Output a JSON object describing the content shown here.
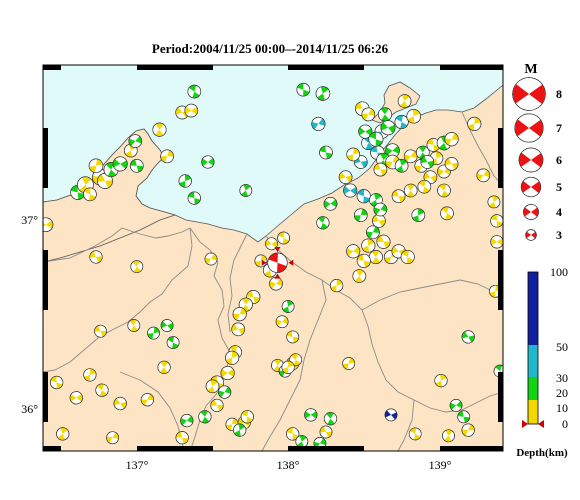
{
  "title": "Period:2004/11/25 00:00–-2014/11/25 06:26",
  "map": {
    "longitude_ticks": [
      "137°",
      "138°",
      "139°"
    ],
    "latitude_ticks": [
      "37°",
      "36°"
    ],
    "sea_color": "#e0fafa",
    "land_color": "#fde4c4",
    "border_color": "#8a8a8a"
  },
  "magnitude_legend": {
    "title": "M",
    "items": [
      {
        "value": "8"
      },
      {
        "value": "7"
      },
      {
        "value": "6"
      },
      {
        "value": "5"
      },
      {
        "value": "4"
      },
      {
        "value": "3"
      }
    ]
  },
  "depth_legend": {
    "title": "Depth(km)",
    "ticks": [
      "100",
      "50",
      "30",
      "20",
      "10",
      "0"
    ],
    "colors": [
      "#f5d800",
      "#12d412",
      "#20b8c8",
      "#1020a0"
    ]
  },
  "mechanisms": [
    {
      "lon": 136.37,
      "lat": 36.97,
      "mag": 3.7,
      "c": "#f5d800"
    },
    {
      "lon": 136.58,
      "lat": 37.14,
      "mag": 3.8,
      "c": "#12d412"
    },
    {
      "lon": 136.63,
      "lat": 37.18,
      "mag": 4.2,
      "c": "#f5d800"
    },
    {
      "lon": 136.73,
      "lat": 37.22,
      "mag": 4.2,
      "c": "#f5d800"
    },
    {
      "lon": 136.76,
      "lat": 37.2,
      "mag": 4.0,
      "c": "#f5d800"
    },
    {
      "lon": 136.8,
      "lat": 37.26,
      "mag": 3.8,
      "c": "#12d412"
    },
    {
      "lon": 136.7,
      "lat": 37.28,
      "mag": 3.7,
      "c": "#f5d800"
    },
    {
      "lon": 136.86,
      "lat": 37.29,
      "mag": 3.8,
      "c": "#12d412"
    },
    {
      "lon": 136.66,
      "lat": 37.13,
      "mag": 3.5,
      "c": "#f5d800"
    },
    {
      "lon": 136.93,
      "lat": 37.36,
      "mag": 3.5,
      "c": "#f5d800"
    },
    {
      "lon": 136.96,
      "lat": 37.41,
      "mag": 3.5,
      "c": "#12d412"
    },
    {
      "lon": 136.97,
      "lat": 37.28,
      "mag": 3.5,
      "c": "#12d412"
    },
    {
      "lon": 137.12,
      "lat": 37.47,
      "mag": 3.6,
      "c": "#f5d800"
    },
    {
      "lon": 137.17,
      "lat": 37.33,
      "mag": 3.5,
      "c": "#f5d800"
    },
    {
      "lon": 137.27,
      "lat": 37.56,
      "mag": 3.5,
      "c": "#f5d800"
    },
    {
      "lon": 137.35,
      "lat": 37.67,
      "mag": 3.5,
      "c": "#12d412"
    },
    {
      "lon": 137.29,
      "lat": 37.2,
      "mag": 3.4,
      "c": "#12d412"
    },
    {
      "lon": 137.44,
      "lat": 37.3,
      "mag": 3.4,
      "c": "#12d412"
    },
    {
      "lon": 137.35,
      "lat": 37.11,
      "mag": 3.4,
      "c": "#12d412"
    },
    {
      "lon": 137.69,
      "lat": 37.15,
      "mag": 3.3,
      "c": "#12d412"
    },
    {
      "lon": 137.46,
      "lat": 36.79,
      "mag": 3.3,
      "c": "#f5d800"
    },
    {
      "lon": 136.7,
      "lat": 36.8,
      "mag": 3.4,
      "c": "#f5d800"
    },
    {
      "lon": 136.97,
      "lat": 36.75,
      "mag": 3.3,
      "c": "#f5d800"
    },
    {
      "lon": 137.79,
      "lat": 36.78,
      "mag": 3.3,
      "c": "#f5d800"
    },
    {
      "lon": 137.86,
      "lat": 36.87,
      "mag": 3.3,
      "c": "#f5d800"
    },
    {
      "lon": 137.94,
      "lat": 36.9,
      "mag": 3.3,
      "c": "#f5d800"
    },
    {
      "lon": 137.85,
      "lat": 36.73,
      "mag": 3.6,
      "c": "#f5d800"
    },
    {
      "lon": 137.89,
      "lat": 36.66,
      "mag": 3.5,
      "c": "#f5d800"
    },
    {
      "lon": 137.74,
      "lat": 36.59,
      "mag": 3.6,
      "c": "#f5d800"
    },
    {
      "lon": 137.69,
      "lat": 36.55,
      "mag": 3.6,
      "c": "#f5d800"
    },
    {
      "lon": 137.65,
      "lat": 36.5,
      "mag": 3.6,
      "c": "#f5d800"
    },
    {
      "lon": 137.64,
      "lat": 36.42,
      "mag": 3.5,
      "c": "#f5d800"
    },
    {
      "lon": 137.62,
      "lat": 36.3,
      "mag": 3.5,
      "c": "#f5d800"
    },
    {
      "lon": 137.6,
      "lat": 36.27,
      "mag": 3.6,
      "c": "#f5d800"
    },
    {
      "lon": 137.57,
      "lat": 36.19,
      "mag": 3.6,
      "c": "#f5d800"
    },
    {
      "lon": 137.5,
      "lat": 36.14,
      "mag": 3.6,
      "c": "#f5d800"
    },
    {
      "lon": 137.47,
      "lat": 36.12,
      "mag": 3.5,
      "c": "#f5d800"
    },
    {
      "lon": 137.55,
      "lat": 36.09,
      "mag": 3.4,
      "c": "#12d412"
    },
    {
      "lon": 137.5,
      "lat": 36.02,
      "mag": 3.4,
      "c": "#f5d800"
    },
    {
      "lon": 137.42,
      "lat": 35.96,
      "mag": 3.4,
      "c": "#12d412"
    },
    {
      "lon": 137.6,
      "lat": 35.92,
      "mag": 3.4,
      "c": "#f5d800"
    },
    {
      "lon": 137.68,
      "lat": 35.93,
      "mag": 3.4,
      "c": "#f5d800"
    },
    {
      "lon": 137.7,
      "lat": 35.96,
      "mag": 3.4,
      "c": "#f5d800"
    },
    {
      "lon": 137.65,
      "lat": 35.89,
      "mag": 3.4,
      "c": "#12d412"
    },
    {
      "lon": 137.3,
      "lat": 35.94,
      "mag": 3.4,
      "c": "#12d412"
    },
    {
      "lon": 137.27,
      "lat": 35.85,
      "mag": 3.4,
      "c": "#f5d800"
    },
    {
      "lon": 137.15,
      "lat": 36.22,
      "mag": 3.4,
      "c": "#f5d800"
    },
    {
      "lon": 137.04,
      "lat": 36.05,
      "mag": 3.4,
      "c": "#f5d800"
    },
    {
      "lon": 136.86,
      "lat": 36.03,
      "mag": 3.4,
      "c": "#f5d800"
    },
    {
      "lon": 136.74,
      "lat": 36.1,
      "mag": 3.4,
      "c": "#f5d800"
    },
    {
      "lon": 136.66,
      "lat": 36.18,
      "mag": 3.4,
      "c": "#f5d800"
    },
    {
      "lon": 136.57,
      "lat": 36.06,
      "mag": 3.4,
      "c": "#f5d800"
    },
    {
      "lon": 136.44,
      "lat": 36.14,
      "mag": 3.4,
      "c": "#f5d800"
    },
    {
      "lon": 136.48,
      "lat": 35.87,
      "mag": 3.4,
      "c": "#f5d800"
    },
    {
      "lon": 136.81,
      "lat": 35.85,
      "mag": 3.3,
      "c": "#f5d800"
    },
    {
      "lon": 136.73,
      "lat": 36.41,
      "mag": 3.3,
      "c": "#f5d800"
    },
    {
      "lon": 136.95,
      "lat": 36.44,
      "mag": 3.3,
      "c": "#f5d800"
    },
    {
      "lon": 137.08,
      "lat": 36.4,
      "mag": 3.3,
      "c": "#12d412"
    },
    {
      "lon": 137.17,
      "lat": 36.44,
      "mag": 3.3,
      "c": "#12d412"
    },
    {
      "lon": 137.21,
      "lat": 36.35,
      "mag": 3.3,
      "c": "#12d412"
    },
    {
      "lon": 137.97,
      "lat": 36.54,
      "mag": 3.3,
      "c": "#12d412"
    },
    {
      "lon": 137.93,
      "lat": 36.46,
      "mag": 3.3,
      "c": "#f5d800"
    },
    {
      "lon": 138.0,
      "lat": 36.38,
      "mag": 3.3,
      "c": "#f5d800"
    },
    {
      "lon": 137.9,
      "lat": 36.23,
      "mag": 3.3,
      "c": "#f5d800"
    },
    {
      "lon": 137.95,
      "lat": 36.2,
      "mag": 3.3,
      "c": "#12d412"
    },
    {
      "lon": 138.0,
      "lat": 36.24,
      "mag": 3.4,
      "c": "#f5d800"
    },
    {
      "lon": 138.02,
      "lat": 36.26,
      "mag": 3.3,
      "c": "#f5d800"
    },
    {
      "lon": 137.97,
      "lat": 36.22,
      "mag": 3.4,
      "c": "#f5d800"
    },
    {
      "lon": 138.12,
      "lat": 35.97,
      "mag": 3.4,
      "c": "#12d412"
    },
    {
      "lon": 138.0,
      "lat": 35.87,
      "mag": 3.4,
      "c": "#f5d800"
    },
    {
      "lon": 138.06,
      "lat": 35.83,
      "mag": 3.3,
      "c": "#12d412"
    },
    {
      "lon": 138.18,
      "lat": 35.82,
      "mag": 3.3,
      "c": "#12d412"
    },
    {
      "lon": 138.22,
      "lat": 35.88,
      "mag": 3.3,
      "c": "#f5d800"
    },
    {
      "lon": 138.25,
      "lat": 35.95,
      "mag": 3.4,
      "c": "#12d412"
    },
    {
      "lon": 138.37,
      "lat": 36.24,
      "mag": 3.3,
      "c": "#f5d800"
    },
    {
      "lon": 138.65,
      "lat": 35.97,
      "mag": 3.3,
      "c": "#1020a0"
    },
    {
      "lon": 138.81,
      "lat": 35.87,
      "mag": 3.3,
      "c": "#f5d800"
    },
    {
      "lon": 138.98,
      "lat": 36.15,
      "mag": 3.4,
      "c": "#f5d800"
    },
    {
      "lon": 139.08,
      "lat": 36.02,
      "mag": 3.3,
      "c": "#12d412"
    },
    {
      "lon": 139.13,
      "lat": 35.96,
      "mag": 3.3,
      "c": "#12d412"
    },
    {
      "lon": 139.03,
      "lat": 35.86,
      "mag": 3.3,
      "c": "#f5d800"
    },
    {
      "lon": 139.16,
      "lat": 35.89,
      "mag": 3.4,
      "c": "#f5d800"
    },
    {
      "lon": 139.16,
      "lat": 36.38,
      "mag": 3.4,
      "c": "#12d412"
    },
    {
      "lon": 139.37,
      "lat": 36.2,
      "mag": 3.3,
      "c": "#12d412"
    },
    {
      "lon": 139.34,
      "lat": 36.62,
      "mag": 3.3,
      "c": "#f5d800"
    },
    {
      "lon": 139.35,
      "lat": 36.88,
      "mag": 3.4,
      "c": "#f5d800"
    },
    {
      "lon": 139.35,
      "lat": 36.99,
      "mag": 3.4,
      "c": "#f5d800"
    },
    {
      "lon": 139.33,
      "lat": 37.09,
      "mag": 3.3,
      "c": "#f5d800"
    },
    {
      "lon": 139.26,
      "lat": 37.23,
      "mag": 3.5,
      "c": "#f5d800"
    },
    {
      "lon": 138.6,
      "lat": 36.88,
      "mag": 3.6,
      "c": "#f5d800"
    },
    {
      "lon": 138.55,
      "lat": 36.8,
      "mag": 3.6,
      "c": "#f5d800"
    },
    {
      "lon": 138.65,
      "lat": 36.8,
      "mag": 3.6,
      "c": "#f5d800"
    },
    {
      "lon": 138.7,
      "lat": 36.83,
      "mag": 3.6,
      "c": "#f5d800"
    },
    {
      "lon": 138.76,
      "lat": 36.8,
      "mag": 3.6,
      "c": "#f5d800"
    },
    {
      "lon": 138.5,
      "lat": 36.86,
      "mag": 3.6,
      "c": "#f5d800"
    },
    {
      "lon": 138.4,
      "lat": 36.83,
      "mag": 3.6,
      "c": "#f5d800"
    },
    {
      "lon": 138.47,
      "lat": 36.78,
      "mag": 3.6,
      "c": "#f5d800"
    },
    {
      "lon": 138.44,
      "lat": 36.7,
      "mag": 3.5,
      "c": "#f5d800"
    },
    {
      "lon": 138.53,
      "lat": 36.93,
      "mag": 3.5,
      "c": "#12d412"
    },
    {
      "lon": 138.57,
      "lat": 36.99,
      "mag": 3.5,
      "c": "#f5d800"
    },
    {
      "lon": 138.2,
      "lat": 36.98,
      "mag": 3.4,
      "c": "#12d412"
    },
    {
      "lon": 138.29,
      "lat": 36.65,
      "mag": 3.4,
      "c": "#f5d800"
    },
    {
      "lon": 137.33,
      "lat": 37.57,
      "mag": 3.5,
      "c": "#f5d800"
    },
    {
      "lon": 138.07,
      "lat": 37.68,
      "mag": 3.5,
      "c": "#12d412"
    },
    {
      "lon": 138.2,
      "lat": 37.66,
      "mag": 3.7,
      "c": "#12d412"
    },
    {
      "lon": 138.17,
      "lat": 37.5,
      "mag": 3.6,
      "c": "#20b8c8"
    },
    {
      "lon": 138.46,
      "lat": 37.58,
      "mag": 3.7,
      "c": "#f5d800"
    },
    {
      "lon": 138.61,
      "lat": 37.55,
      "mag": 3.6,
      "c": "#12d412"
    },
    {
      "lon": 138.59,
      "lat": 37.46,
      "mag": 3.7,
      "c": "#20b8c8"
    },
    {
      "lon": 138.63,
      "lat": 37.48,
      "mag": 3.8,
      "c": "#12d412"
    },
    {
      "lon": 138.72,
      "lat": 37.51,
      "mag": 3.6,
      "c": "#20b8c8"
    },
    {
      "lon": 138.8,
      "lat": 37.54,
      "mag": 3.7,
      "c": "#f5d800"
    },
    {
      "lon": 138.66,
      "lat": 37.36,
      "mag": 3.7,
      "c": "#12d412"
    },
    {
      "lon": 138.56,
      "lat": 37.35,
      "mag": 3.7,
      "c": "#20b8c8"
    },
    {
      "lon": 138.6,
      "lat": 37.31,
      "mag": 3.7,
      "c": "#12d412"
    },
    {
      "lon": 138.66,
      "lat": 37.3,
      "mag": 3.7,
      "c": "#f5d800"
    },
    {
      "lon": 138.45,
      "lat": 37.3,
      "mag": 3.5,
      "c": "#20b8c8"
    },
    {
      "lon": 138.5,
      "lat": 37.4,
      "mag": 3.6,
      "c": "#20b8c8"
    },
    {
      "lon": 138.4,
      "lat": 37.34,
      "mag": 3.5,
      "c": "#f5d800"
    },
    {
      "lon": 138.48,
      "lat": 37.46,
      "mag": 3.6,
      "c": "#12d412"
    },
    {
      "lon": 138.55,
      "lat": 37.42,
      "mag": 3.8,
      "c": "#12d412"
    },
    {
      "lon": 138.72,
      "lat": 37.28,
      "mag": 3.5,
      "c": "#12d412"
    },
    {
      "lon": 138.78,
      "lat": 37.33,
      "mag": 3.5,
      "c": "#f5d800"
    },
    {
      "lon": 138.58,
      "lat": 37.26,
      "mag": 3.5,
      "c": "#f5d800"
    },
    {
      "lon": 138.86,
      "lat": 37.35,
      "mag": 3.5,
      "c": "#12d412"
    },
    {
      "lon": 138.85,
      "lat": 37.28,
      "mag": 3.5,
      "c": "#f5d800"
    },
    {
      "lon": 138.91,
      "lat": 37.22,
      "mag": 3.5,
      "c": "#f5d800"
    },
    {
      "lon": 138.87,
      "lat": 37.17,
      "mag": 3.5,
      "c": "#f5d800"
    },
    {
      "lon": 138.95,
      "lat": 37.32,
      "mag": 3.5,
      "c": "#f5d800"
    },
    {
      "lon": 139.0,
      "lat": 37.25,
      "mag": 3.5,
      "c": "#f5d800"
    },
    {
      "lon": 138.93,
      "lat": 37.39,
      "mag": 3.5,
      "c": "#f5d800"
    },
    {
      "lon": 139.0,
      "lat": 37.4,
      "mag": 3.7,
      "c": "#12d412"
    },
    {
      "lon": 139.05,
      "lat": 37.42,
      "mag": 3.6,
      "c": "#f5d800"
    },
    {
      "lon": 139.05,
      "lat": 37.29,
      "mag": 3.5,
      "c": "#f5d800"
    },
    {
      "lon": 139.0,
      "lat": 37.15,
      "mag": 3.5,
      "c": "#f5d800"
    },
    {
      "lon": 139.2,
      "lat": 37.5,
      "mag": 3.6,
      "c": "#f5d800"
    },
    {
      "lon": 138.38,
      "lat": 37.15,
      "mag": 3.6,
      "c": "#20b8c8"
    },
    {
      "lon": 138.47,
      "lat": 37.12,
      "mag": 3.6,
      "c": "#20b8c8"
    },
    {
      "lon": 138.55,
      "lat": 37.1,
      "mag": 3.5,
      "c": "#12d412"
    },
    {
      "lon": 138.58,
      "lat": 37.05,
      "mag": 3.5,
      "c": "#12d412"
    },
    {
      "lon": 138.7,
      "lat": 37.12,
      "mag": 3.5,
      "c": "#f5d800"
    },
    {
      "lon": 138.78,
      "lat": 37.15,
      "mag": 3.5,
      "c": "#f5d800"
    },
    {
      "lon": 138.45,
      "lat": 37.02,
      "mag": 3.5,
      "c": "#12d412"
    },
    {
      "lon": 138.35,
      "lat": 37.22,
      "mag": 3.5,
      "c": "#f5d800"
    },
    {
      "lon": 139.02,
      "lat": 37.03,
      "mag": 3.5,
      "c": "#f5d800"
    },
    {
      "lon": 138.83,
      "lat": 37.02,
      "mag": 3.5,
      "c": "#12d412"
    },
    {
      "lon": 138.25,
      "lat": 37.08,
      "mag": 3.5,
      "c": "#12d412"
    },
    {
      "lon": 138.22,
      "lat": 37.35,
      "mag": 3.5,
      "c": "#12d412"
    },
    {
      "lon": 138.74,
      "lat": 37.62,
      "mag": 3.5,
      "c": "#f5d800"
    },
    {
      "lon": 138.5,
      "lat": 37.55,
      "mag": 3.5,
      "c": "#f5d800"
    },
    {
      "lon": 138.89,
      "lat": 37.3,
      "mag": 3.5,
      "c": "#12d412"
    },
    {
      "lon": 137.9,
      "lat": 36.77,
      "mag": 5.0,
      "c": "#f5d800",
      "beach": true
    }
  ]
}
